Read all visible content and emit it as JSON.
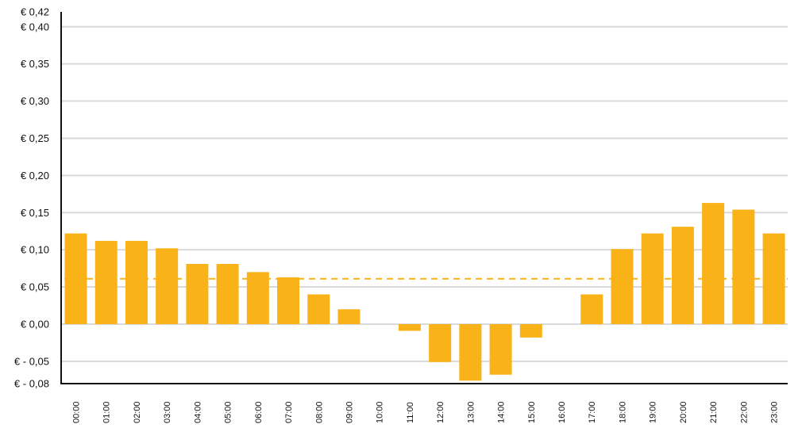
{
  "chart_data": {
    "type": "bar",
    "categories": [
      "00:00",
      "01:00",
      "02:00",
      "03:00",
      "04:00",
      "05:00",
      "06:00",
      "07:00",
      "08:00",
      "09:00",
      "10:00",
      "11:00",
      "12:00",
      "13:00",
      "14:00",
      "15:00",
      "16:00",
      "17:00",
      "18:00",
      "19:00",
      "20:00",
      "21:00",
      "22:00",
      "23:00"
    ],
    "values": [
      0.122,
      0.112,
      0.112,
      0.102,
      0.081,
      0.081,
      0.07,
      0.063,
      0.04,
      0.02,
      0.0,
      -0.009,
      -0.051,
      -0.076,
      -0.068,
      -0.018,
      0.0,
      0.04,
      0.101,
      0.122,
      0.131,
      0.163,
      0.154,
      0.122
    ],
    "ylim": [
      -0.08,
      0.42
    ],
    "y_ticks": [
      {
        "value": 0.42,
        "label": "€ 0,42"
      },
      {
        "value": 0.4,
        "label": "€ 0,40"
      },
      {
        "value": 0.35,
        "label": "€ 0,35"
      },
      {
        "value": 0.3,
        "label": "€ 0,30"
      },
      {
        "value": 0.25,
        "label": "€ 0,25"
      },
      {
        "value": 0.2,
        "label": "€ 0,20"
      },
      {
        "value": 0.15,
        "label": "€ 0,15"
      },
      {
        "value": 0.1,
        "label": "€ 0,10"
      },
      {
        "value": 0.05,
        "label": "€ 0,05"
      },
      {
        "value": 0.0,
        "label": "€ 0,00"
      },
      {
        "value": -0.05,
        "label": "€ - 0,05"
      },
      {
        "value": -0.08,
        "label": "€ - 0,08"
      }
    ],
    "gridlines": [
      0.4,
      0.35,
      0.3,
      0.25,
      0.2,
      0.15,
      0.1,
      0.05,
      0.0,
      -0.05
    ],
    "reference_line": 0.061,
    "grid": true,
    "colors": {
      "bar": "#F9B218",
      "reference": "#F9B218",
      "grid": "#d9d9d9",
      "axis": "#111111"
    }
  }
}
